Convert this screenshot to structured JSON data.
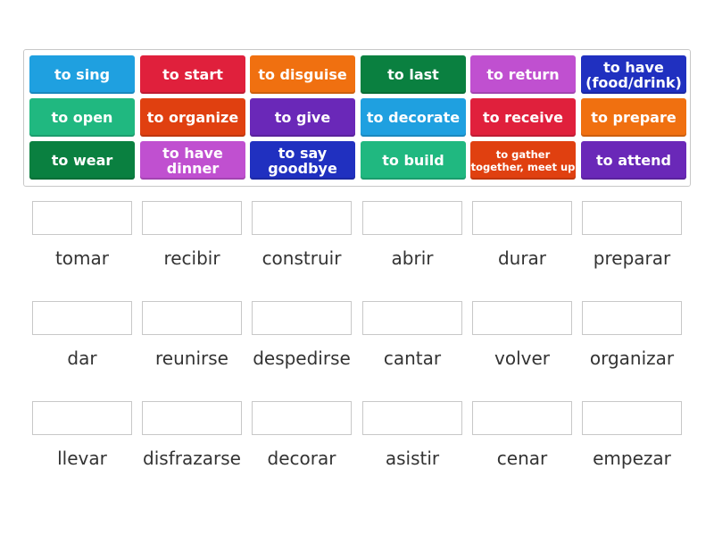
{
  "tiles": [
    {
      "label": "to sing",
      "color": "#1fa0e0"
    },
    {
      "label": "to start",
      "color": "#e0203c"
    },
    {
      "label": "to disguise",
      "color": "#f07010"
    },
    {
      "label": "to last",
      "color": "#0a8040"
    },
    {
      "label": "to return",
      "color": "#c050d0"
    },
    {
      "label": "to have (food/drink)",
      "color": "#2030c0"
    },
    {
      "label": "to open",
      "color": "#20b880"
    },
    {
      "label": "to organize",
      "color": "#e04010"
    },
    {
      "label": "to give",
      "color": "#6a28b8"
    },
    {
      "label": "to decorate",
      "color": "#1fa0e0"
    },
    {
      "label": "to receive",
      "color": "#e0203c"
    },
    {
      "label": "to prepare",
      "color": "#f07010"
    },
    {
      "label": "to wear",
      "color": "#0a8040"
    },
    {
      "label": "to have dinner",
      "color": "#c050d0"
    },
    {
      "label": "to say goodbye",
      "color": "#2030c0"
    },
    {
      "label": "to build",
      "color": "#20b880"
    },
    {
      "label": "to gather together, meet up",
      "color": "#e04010",
      "small": true
    },
    {
      "label": "to attend",
      "color": "#6a28b8"
    }
  ],
  "targets": [
    "tomar",
    "recibir",
    "construir",
    "abrir",
    "durar",
    "preparar",
    "dar",
    "reunirse",
    "despedirse",
    "cantar",
    "volver",
    "organizar",
    "llevar",
    "disfrazarse",
    "decorar",
    "asistir",
    "cenar",
    "empezar"
  ]
}
